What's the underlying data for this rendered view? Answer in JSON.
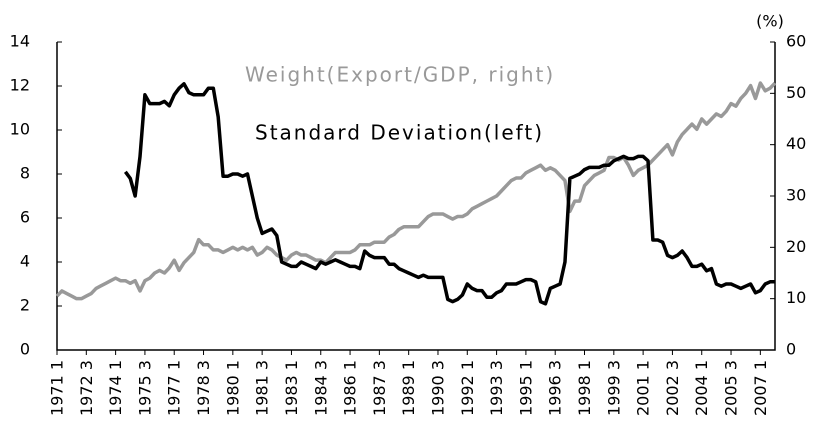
{
  "chart_data": {
    "type": "line",
    "y2_label": "(%)",
    "categories": [
      "1971 1",
      null,
      null,
      null,
      null,
      null,
      "1972 3",
      null,
      null,
      null,
      null,
      null,
      "1974 1",
      null,
      null,
      null,
      null,
      null,
      "1975 3",
      null,
      null,
      null,
      null,
      null,
      "1977 1",
      null,
      null,
      null,
      null,
      null,
      "1978 3",
      null,
      null,
      null,
      null,
      null,
      "1980 1",
      null,
      null,
      null,
      null,
      null,
      "1981 3",
      null,
      null,
      null,
      null,
      null,
      "1983 1",
      null,
      null,
      null,
      null,
      null,
      "1984 3",
      null,
      null,
      null,
      null,
      null,
      "1986 1",
      null,
      null,
      null,
      null,
      null,
      "1987 3",
      null,
      null,
      null,
      null,
      null,
      "1989 1",
      null,
      null,
      null,
      null,
      null,
      "1990 3",
      null,
      null,
      null,
      null,
      null,
      "1992 1",
      null,
      null,
      null,
      null,
      null,
      "1993 3",
      null,
      null,
      null,
      null,
      null,
      "1995 1",
      null,
      null,
      null,
      null,
      null,
      "1996 3",
      null,
      null,
      null,
      null,
      null,
      "1998 1",
      null,
      null,
      null,
      null,
      null,
      "1999 3",
      null,
      null,
      null,
      null,
      null,
      "2001 1",
      null,
      null,
      null,
      null,
      null,
      "2002 3",
      null,
      null,
      null,
      null,
      null,
      "2004 1",
      null,
      null,
      null,
      null,
      null,
      "2005 3",
      null,
      null,
      null,
      null,
      null,
      "2007 1",
      null,
      null,
      null
    ],
    "series": [
      {
        "name": "Weight(Export/GDP, right)",
        "color": "#999999",
        "axis": "y2",
        "values": [
          10.5,
          11.5,
          11,
          10.5,
          10,
          10,
          10.5,
          11,
          12,
          12.5,
          13,
          13.5,
          14,
          13.5,
          13.5,
          13,
          13.5,
          11.5,
          13.5,
          14,
          15,
          15.5,
          15,
          16,
          17.5,
          15.5,
          17,
          18,
          19,
          21.5,
          20.5,
          20.5,
          19.5,
          19.5,
          19,
          19.5,
          20,
          19.5,
          20,
          19.5,
          20,
          18.5,
          19,
          20,
          19.5,
          18.5,
          18,
          17.5,
          18.5,
          19,
          18.5,
          18.5,
          18,
          17.5,
          17.5,
          17,
          18,
          19,
          19,
          19,
          19,
          19.5,
          20.5,
          20.5,
          20.5,
          21,
          21,
          21,
          22,
          22.5,
          23.5,
          24,
          24,
          24,
          24,
          25,
          26,
          26.5,
          26.5,
          26.5,
          26,
          25.5,
          26,
          26,
          26.5,
          27.5,
          28,
          28.5,
          29,
          29.5,
          30,
          31,
          32,
          33,
          33.5,
          33.5,
          34.5,
          35,
          35.5,
          36,
          35,
          35.5,
          35,
          34,
          33,
          27,
          29,
          29,
          32,
          33,
          34,
          34.5,
          35,
          37.5,
          37.5,
          37,
          37.5,
          36,
          34,
          35,
          35.5,
          36,
          37,
          38,
          39,
          40,
          38,
          40.5,
          42,
          43,
          44,
          43,
          45,
          44,
          45,
          46,
          45.5,
          46.5,
          48,
          47.5,
          49,
          50,
          51.5,
          49,
          52,
          50.5,
          51,
          52
        ]
      },
      {
        "name": "Standard Deviation(left)",
        "color": "#000000",
        "values": [
          null,
          null,
          null,
          null,
          null,
          null,
          null,
          null,
          null,
          null,
          null,
          null,
          null,
          null,
          8.1,
          7.8,
          7.0,
          8.8,
          11.6,
          11.2,
          11.2,
          11.2,
          11.3,
          11.1,
          11.6,
          11.9,
          12.1,
          11.7,
          11.6,
          11.6,
          11.6,
          11.9,
          11.9,
          10.6,
          7.9,
          7.9,
          8.0,
          8.0,
          7.9,
          8.0,
          7.0,
          6.0,
          5.3,
          5.4,
          5.5,
          5.2,
          4.0,
          3.9,
          3.8,
          3.8,
          4.0,
          3.9,
          3.8,
          3.7,
          4.0,
          3.9,
          4.0,
          4.1,
          4.0,
          3.9,
          3.8,
          3.8,
          3.7,
          4.5,
          4.3,
          4.2,
          4.2,
          4.2,
          3.9,
          3.9,
          3.7,
          3.6,
          3.5,
          3.4,
          3.3,
          3.4,
          3.3,
          3.3,
          3.3,
          3.3,
          2.3,
          2.2,
          2.3,
          2.5,
          3.0,
          2.8,
          2.7,
          2.7,
          2.4,
          2.4,
          2.6,
          2.7,
          3.0,
          3.0,
          3.0,
          3.1,
          3.2,
          3.2,
          3.1,
          2.2,
          2.1,
          2.8,
          2.9,
          3.0,
          4.0,
          7.8,
          7.9,
          8.0,
          8.2,
          8.3,
          8.3,
          8.3,
          8.4,
          8.4,
          8.6,
          8.7,
          8.8,
          8.7,
          8.7,
          8.8,
          8.8,
          8.6,
          5.0,
          5.0,
          4.9,
          4.3,
          4.2,
          4.3,
          4.5,
          4.2,
          3.8,
          3.8,
          3.9,
          3.6,
          3.7,
          3.0,
          2.9,
          3.0,
          3.0,
          2.9,
          2.8,
          2.9,
          3.0,
          2.6,
          2.7,
          3.0,
          3.1,
          3.1
        ]
      }
    ],
    "ylim": [
      0,
      14
    ],
    "yticks": [
      0,
      2,
      4,
      6,
      8,
      10,
      12,
      14
    ],
    "y2lim": [
      0,
      60
    ],
    "y2ticks": [
      0,
      10,
      20,
      30,
      40,
      50,
      60
    ]
  }
}
